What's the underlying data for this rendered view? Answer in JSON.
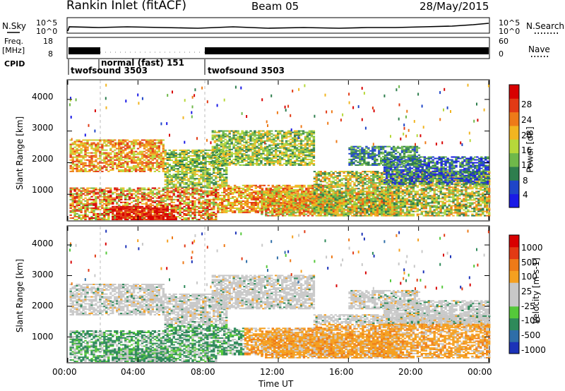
{
  "header": {
    "station": "Rankin Inlet (fitACF)",
    "beam": "Beam 05",
    "date": "28/May/2015"
  },
  "top_panels": {
    "noise_left_label": "N.Sky",
    "noise_right_label": "N.Search",
    "noise_left_ticks": [
      "10^5",
      "10^0"
    ],
    "noise_right_ticks": [
      "10^5",
      "10^0"
    ],
    "freq_label": "Freq.",
    "freq_unit": "[MHz]",
    "freq_ticks": [
      "18",
      "8"
    ],
    "nave_label": "Nave",
    "nave_ticks": [
      "60",
      "0"
    ],
    "cpid_label": "CPID",
    "cpid_segments": [
      {
        "label": "twofsound 3503"
      },
      {
        "label": "normal (fast) 151"
      },
      {
        "label": "twofsound 3503"
      }
    ]
  },
  "axes": {
    "xlabel": "Time UT",
    "ylabel": "Slant Range [km]",
    "x_ticks": [
      "00:00",
      "04:00",
      "08:00",
      "12:00",
      "16:00",
      "20:00",
      "00:00"
    ],
    "y_ticks": [
      "1000",
      "2000",
      "3000",
      "4000"
    ]
  },
  "chart_data": [
    {
      "type": "heatmap",
      "name": "power",
      "xlim": [
        0,
        24
      ],
      "ylim": [
        180,
        4600
      ],
      "colorbar_label": "Power [dB]",
      "colorbar_ticks": [
        "4",
        "8",
        "12",
        "16",
        "20",
        "24",
        "28"
      ],
      "colorbar_colors": [
        "#1a1ae6",
        "#1f45c8",
        "#2e7e4e",
        "#6fb84a",
        "#b6d83a",
        "#f2b520",
        "#ee7a18",
        "#e23a14",
        "#d80000"
      ]
    },
    {
      "type": "heatmap",
      "name": "velocity",
      "xlim": [
        0,
        24
      ],
      "ylim": [
        180,
        4600
      ],
      "colorbar_label": "Velocity [m s-1]",
      "colorbar_ticks": [
        "1000",
        "500",
        "100",
        "25",
        "-25",
        "-100",
        "-500",
        "-1000"
      ],
      "colorbar_colors": [
        "#1c33b8",
        "#2f6ea8",
        "#2e8a5a",
        "#55c83a",
        "#c8c8c8",
        "#c8c8c8",
        "#f5a020",
        "#ee7a18",
        "#e23a14",
        "#d80000"
      ]
    }
  ]
}
